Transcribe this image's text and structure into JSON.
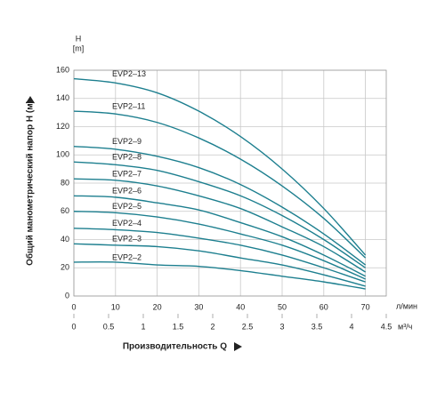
{
  "chart_data": {
    "type": "line",
    "y_label": "Общий манометрический напор H (м)",
    "y_unit_top": "H",
    "y_unit_top2": "[m]",
    "x_label": "Производительность Q",
    "x_unit": "л/мин",
    "x2_unit": "м³/ч",
    "x": [
      0,
      10,
      20,
      30,
      40,
      50,
      60,
      70
    ],
    "xlim": [
      0,
      75
    ],
    "xticks": [
      0,
      10,
      20,
      30,
      40,
      50,
      60,
      70
    ],
    "x2lim": [
      0,
      4.5
    ],
    "x2ticks": [
      0,
      0.5,
      1,
      1.5,
      2,
      2.5,
      3,
      3.5,
      4,
      4.5
    ],
    "ylim": [
      0,
      160
    ],
    "yticks": [
      0,
      20,
      40,
      60,
      80,
      100,
      120,
      140,
      160
    ],
    "grid": true,
    "series": [
      {
        "name": "EVP2–13",
        "color": "#1d7f8f",
        "values": [
          154,
          151,
          144,
          131,
          113,
          90,
          62,
          29
        ]
      },
      {
        "name": "EVP2–11",
        "color": "#1d7f8f",
        "values": [
          131,
          129,
          123,
          112,
          97,
          78,
          55,
          27
        ]
      },
      {
        "name": "EVP2–9",
        "color": "#1d7f8f",
        "values": [
          106,
          104,
          99,
          91,
          79,
          63,
          44,
          22
        ]
      },
      {
        "name": "EVP2–8",
        "color": "#1d7f8f",
        "values": [
          95,
          93,
          89,
          81,
          71,
          57,
          40,
          20
        ]
      },
      {
        "name": "EVP2–7",
        "color": "#1d7f8f",
        "values": [
          83,
          82,
          78,
          71,
          62,
          49,
          35,
          17
        ]
      },
      {
        "name": "EVP2–6",
        "color": "#1d7f8f",
        "values": [
          71,
          70,
          66,
          61,
          52,
          42,
          29,
          14
        ]
      },
      {
        "name": "EVP2–5",
        "color": "#1d7f8f",
        "values": [
          60,
          59,
          56,
          51,
          44,
          36,
          25,
          12
        ]
      },
      {
        "name": "EVP2–4",
        "color": "#1d7f8f",
        "values": [
          48,
          47,
          45,
          41,
          36,
          29,
          20,
          10
        ]
      },
      {
        "name": "EVP2–3",
        "color": "#1d7f8f",
        "values": [
          37,
          36,
          35,
          32,
          27,
          22,
          15,
          7
        ]
      },
      {
        "name": "EVP2–2",
        "color": "#1d7f8f",
        "values": [
          24,
          24,
          22,
          21,
          18,
          14,
          10,
          5
        ]
      }
    ]
  }
}
